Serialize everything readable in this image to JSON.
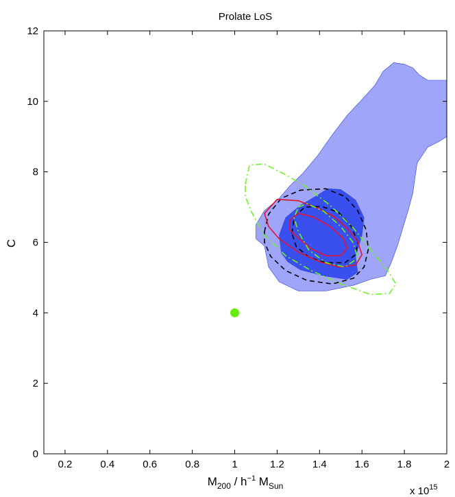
{
  "chart_data": {
    "type": "contour",
    "title": "Prolate LoS",
    "xlabel": {
      "base": "M",
      "sub1": "200",
      "mid": " / h",
      "sup": "−1",
      "mid2": " M",
      "sub2": "Sun"
    },
    "x_multiplier": {
      "base": "x 10",
      "exp": "15"
    },
    "ylabel": "C",
    "xlim": [
      0.1,
      2.0
    ],
    "ylim": [
      0,
      12
    ],
    "xticks": [
      0.2,
      0.4,
      0.6,
      0.8,
      1.0,
      1.2,
      1.4,
      1.6,
      1.8,
      2.0
    ],
    "xtick_labels": [
      "0.2",
      "0.4",
      "0.6",
      "0.8",
      "1",
      "1.2",
      "1.4",
      "1.6",
      "1.8",
      "2"
    ],
    "yticks": [
      0,
      2,
      4,
      6,
      8,
      10,
      12
    ],
    "ytick_labels": [
      "0",
      "2",
      "4",
      "6",
      "8",
      "10",
      "12"
    ],
    "colors": {
      "outer_fill": "#9fa6fa",
      "inner_fill": "#3a50ee",
      "fill_edge": "#2b3fd6",
      "red": "#e4122f",
      "black": "#000000",
      "green": "#6ef51e",
      "marker": "#66ee0a"
    },
    "series": [
      {
        "kind": "filled",
        "level": "outer",
        "points": [
          [
            1.14,
            5.9
          ],
          [
            1.1,
            6.1
          ],
          [
            1.1,
            6.5
          ],
          [
            1.14,
            6.9
          ],
          [
            1.21,
            7.25
          ],
          [
            1.26,
            7.6
          ],
          [
            1.32,
            7.95
          ],
          [
            1.39,
            8.45
          ],
          [
            1.46,
            9.05
          ],
          [
            1.53,
            9.6
          ],
          [
            1.6,
            10.05
          ],
          [
            1.66,
            10.45
          ],
          [
            1.7,
            10.85
          ],
          [
            1.75,
            11.1
          ],
          [
            1.8,
            11.05
          ],
          [
            1.84,
            10.95
          ],
          [
            1.87,
            10.75
          ],
          [
            1.91,
            10.6
          ],
          [
            2.0,
            10.6
          ],
          [
            2.0,
            9.0
          ],
          [
            1.96,
            8.85
          ],
          [
            1.91,
            8.7
          ],
          [
            1.86,
            8.25
          ],
          [
            1.84,
            7.4
          ],
          [
            1.82,
            6.95
          ],
          [
            1.8,
            6.55
          ],
          [
            1.77,
            5.95
          ],
          [
            1.74,
            5.45
          ],
          [
            1.71,
            5.05
          ],
          [
            1.64,
            4.95
          ],
          [
            1.56,
            4.78
          ],
          [
            1.43,
            4.62
          ],
          [
            1.3,
            4.62
          ],
          [
            1.21,
            4.88
          ],
          [
            1.16,
            5.3
          ],
          [
            1.14,
            5.9
          ]
        ]
      },
      {
        "kind": "filled",
        "level": "inner",
        "points": [
          [
            1.22,
            5.7
          ],
          [
            1.21,
            6.2
          ],
          [
            1.24,
            6.7
          ],
          [
            1.31,
            7.05
          ],
          [
            1.38,
            7.3
          ],
          [
            1.44,
            7.52
          ],
          [
            1.5,
            7.5
          ],
          [
            1.57,
            7.2
          ],
          [
            1.61,
            6.7
          ],
          [
            1.6,
            6.2
          ],
          [
            1.57,
            5.6
          ],
          [
            1.58,
            5.15
          ],
          [
            1.53,
            4.95
          ],
          [
            1.42,
            5.05
          ],
          [
            1.31,
            5.22
          ],
          [
            1.25,
            5.45
          ],
          [
            1.22,
            5.7
          ]
        ]
      },
      {
        "kind": "line",
        "color": "black",
        "dash": "dashed",
        "level": "outer",
        "points": [
          [
            1.14,
            6.3
          ],
          [
            1.16,
            6.8
          ],
          [
            1.22,
            7.25
          ],
          [
            1.31,
            7.48
          ],
          [
            1.43,
            7.52
          ],
          [
            1.52,
            7.3
          ],
          [
            1.58,
            6.9
          ],
          [
            1.62,
            6.35
          ],
          [
            1.63,
            5.8
          ],
          [
            1.61,
            5.3
          ],
          [
            1.56,
            4.98
          ],
          [
            1.46,
            4.82
          ],
          [
            1.34,
            4.92
          ],
          [
            1.24,
            5.2
          ],
          [
            1.17,
            5.6
          ],
          [
            1.14,
            6.0
          ],
          [
            1.14,
            6.3
          ]
        ]
      },
      {
        "kind": "line",
        "color": "black",
        "dash": "dashed",
        "level": "inner",
        "points": [
          [
            1.27,
            6.25
          ],
          [
            1.28,
            6.72
          ],
          [
            1.33,
            7.0
          ],
          [
            1.41,
            7.02
          ],
          [
            1.49,
            6.85
          ],
          [
            1.55,
            6.45
          ],
          [
            1.58,
            6.0
          ],
          [
            1.57,
            5.65
          ],
          [
            1.52,
            5.42
          ],
          [
            1.43,
            5.42
          ],
          [
            1.35,
            5.58
          ],
          [
            1.29,
            5.88
          ],
          [
            1.27,
            6.25
          ]
        ]
      },
      {
        "kind": "line",
        "color": "red",
        "dash": "solid",
        "level": "outer",
        "points": [
          [
            1.14,
            6.82
          ],
          [
            1.2,
            7.22
          ],
          [
            1.3,
            7.18
          ],
          [
            1.4,
            6.95
          ],
          [
            1.47,
            6.72
          ],
          [
            1.53,
            6.4
          ],
          [
            1.58,
            6.02
          ],
          [
            1.6,
            5.65
          ],
          [
            1.57,
            5.35
          ],
          [
            1.49,
            5.3
          ],
          [
            1.4,
            5.45
          ],
          [
            1.3,
            5.72
          ],
          [
            1.21,
            6.1
          ],
          [
            1.16,
            6.45
          ],
          [
            1.14,
            6.82
          ]
        ]
      },
      {
        "kind": "line",
        "color": "red",
        "dash": "solid",
        "level": "inner",
        "points": [
          [
            1.26,
            6.62
          ],
          [
            1.3,
            6.82
          ],
          [
            1.37,
            6.72
          ],
          [
            1.45,
            6.45
          ],
          [
            1.51,
            6.12
          ],
          [
            1.53,
            5.85
          ],
          [
            1.5,
            5.62
          ],
          [
            1.43,
            5.62
          ],
          [
            1.36,
            5.82
          ],
          [
            1.3,
            6.12
          ],
          [
            1.26,
            6.35
          ],
          [
            1.26,
            6.62
          ]
        ]
      },
      {
        "kind": "line",
        "color": "green",
        "dash": "dashdot",
        "level": "outer",
        "points": [
          [
            1.05,
            7.65
          ],
          [
            1.07,
            8.2
          ],
          [
            1.14,
            8.22
          ],
          [
            1.23,
            7.95
          ],
          [
            1.33,
            7.6
          ],
          [
            1.45,
            7.05
          ],
          [
            1.56,
            6.4
          ],
          [
            1.65,
            5.72
          ],
          [
            1.72,
            5.22
          ],
          [
            1.76,
            4.82
          ],
          [
            1.73,
            4.55
          ],
          [
            1.64,
            4.52
          ],
          [
            1.5,
            4.82
          ],
          [
            1.36,
            5.2
          ],
          [
            1.24,
            5.62
          ],
          [
            1.14,
            6.2
          ],
          [
            1.08,
            6.85
          ],
          [
            1.05,
            7.3
          ],
          [
            1.05,
            7.65
          ]
        ]
      },
      {
        "kind": "line",
        "color": "green",
        "dash": "dashdot",
        "level": "inner",
        "points": [
          [
            1.3,
            7.0
          ],
          [
            1.34,
            7.1
          ],
          [
            1.42,
            6.88
          ],
          [
            1.5,
            6.45
          ],
          [
            1.56,
            5.98
          ],
          [
            1.58,
            5.55
          ],
          [
            1.52,
            5.3
          ],
          [
            1.43,
            5.42
          ],
          [
            1.35,
            5.78
          ],
          [
            1.3,
            6.3
          ],
          [
            1.28,
            6.7
          ],
          [
            1.3,
            7.0
          ]
        ]
      }
    ],
    "markers": [
      {
        "x": 1.0,
        "y": 4.0,
        "color": "marker",
        "shape": "circle"
      }
    ]
  }
}
